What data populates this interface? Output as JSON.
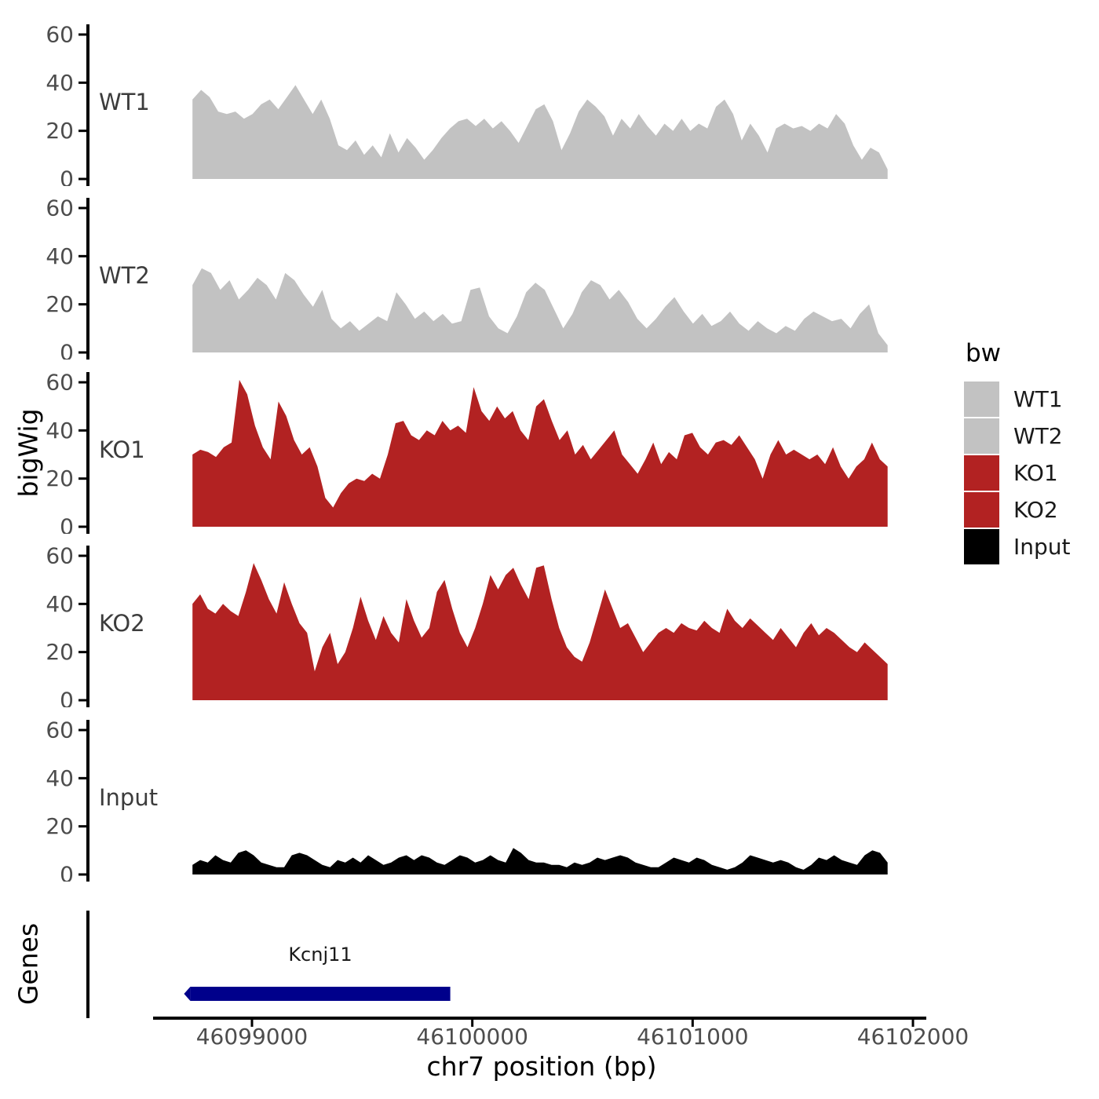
{
  "chart_data": {
    "type": "area",
    "title": "",
    "xlabel": "chr7 position (bp)",
    "ylabel": "bigWig",
    "grid": false,
    "ylim": [
      0,
      60
    ],
    "yticks": [
      0,
      20,
      40,
      60
    ],
    "xticks": [
      46099000,
      46100000,
      46101000,
      46102000
    ],
    "x_range_bp": [
      46098730,
      46101885
    ],
    "panels": [
      {
        "name": "WT1",
        "color": "#c2c2c2",
        "values": [
          33,
          37,
          34,
          28,
          27,
          28,
          25,
          27,
          31,
          33,
          29,
          34,
          39,
          33,
          27,
          33,
          25,
          14,
          12,
          16,
          10,
          14,
          9,
          19,
          11,
          17,
          13,
          8,
          12,
          17,
          21,
          24,
          25,
          22,
          25,
          21,
          24,
          20,
          15,
          22,
          29,
          31,
          24,
          12,
          19,
          28,
          33,
          30,
          26,
          18,
          25,
          21,
          27,
          22,
          18,
          23,
          20,
          25,
          20,
          23,
          21,
          30,
          33,
          27,
          16,
          23,
          18,
          11,
          21,
          23,
          21,
          22,
          20,
          23,
          21,
          27,
          23,
          14,
          8,
          13,
          11,
          4
        ]
      },
      {
        "name": "WT2",
        "color": "#c2c2c2",
        "values": [
          28,
          35,
          33,
          26,
          30,
          22,
          26,
          31,
          28,
          22,
          33,
          30,
          24,
          19,
          26,
          14,
          10,
          13,
          9,
          12,
          15,
          13,
          25,
          20,
          14,
          17,
          13,
          16,
          12,
          13,
          26,
          27,
          15,
          10,
          8,
          15,
          25,
          29,
          26,
          18,
          10,
          16,
          25,
          30,
          28,
          22,
          26,
          21,
          14,
          10,
          14,
          19,
          23,
          17,
          12,
          16,
          11,
          13,
          17,
          12,
          9,
          13,
          10,
          8,
          11,
          9,
          14,
          17,
          15,
          13,
          14,
          10,
          16,
          20,
          8,
          3
        ]
      },
      {
        "name": "KO1",
        "color": "#b22222",
        "values": [
          30,
          32,
          31,
          29,
          33,
          35,
          61,
          55,
          42,
          33,
          28,
          52,
          46,
          36,
          30,
          33,
          25,
          12,
          8,
          14,
          18,
          20,
          19,
          22,
          20,
          30,
          43,
          44,
          38,
          36,
          40,
          38,
          44,
          40,
          42,
          39,
          58,
          48,
          44,
          50,
          45,
          48,
          40,
          36,
          50,
          53,
          44,
          36,
          40,
          30,
          34,
          28,
          32,
          36,
          40,
          30,
          26,
          22,
          28,
          35,
          26,
          31,
          28,
          38,
          39,
          33,
          30,
          35,
          36,
          34,
          38,
          33,
          28,
          20,
          30,
          36,
          30,
          32,
          30,
          28,
          30,
          26,
          33,
          25,
          20,
          25,
          28,
          35,
          28,
          25
        ]
      },
      {
        "name": "KO2",
        "color": "#b22222",
        "values": [
          40,
          44,
          38,
          36,
          40,
          37,
          35,
          45,
          57,
          50,
          42,
          36,
          49,
          40,
          32,
          28,
          12,
          22,
          28,
          15,
          20,
          30,
          43,
          33,
          25,
          35,
          28,
          24,
          42,
          33,
          26,
          30,
          45,
          50,
          38,
          28,
          22,
          30,
          40,
          52,
          46,
          52,
          55,
          48,
          42,
          55,
          56,
          42,
          30,
          22,
          18,
          16,
          24,
          35,
          46,
          38,
          30,
          32,
          26,
          20,
          24,
          28,
          30,
          28,
          32,
          30,
          29,
          33,
          30,
          28,
          38,
          33,
          30,
          34,
          31,
          28,
          25,
          30,
          26,
          22,
          28,
          32,
          27,
          30,
          28,
          25,
          22,
          20,
          24,
          21,
          18,
          15
        ]
      },
      {
        "name": "Input",
        "color": "#000000",
        "values": [
          4,
          6,
          5,
          8,
          6,
          5,
          9,
          10,
          8,
          5,
          4,
          3,
          3,
          8,
          9,
          8,
          6,
          4,
          3,
          6,
          5,
          7,
          5,
          8,
          6,
          4,
          5,
          7,
          8,
          6,
          8,
          7,
          5,
          4,
          6,
          8,
          7,
          5,
          6,
          8,
          6,
          5,
          11,
          9,
          6,
          5,
          5,
          4,
          4,
          3,
          5,
          4,
          5,
          7,
          6,
          7,
          8,
          7,
          5,
          4,
          3,
          3,
          5,
          7,
          6,
          5,
          7,
          6,
          4,
          3,
          2,
          3,
          5,
          8,
          7,
          6,
          5,
          6,
          5,
          3,
          2,
          4,
          7,
          6,
          8,
          6,
          5,
          4,
          8,
          10,
          9,
          5
        ]
      }
    ],
    "genes_track": {
      "label": "Genes",
      "genes": [
        {
          "name": "Kcnj11",
          "start_bp": 46098720,
          "end_bp": 46099900,
          "strand": "-",
          "color": "#00008b"
        }
      ]
    },
    "legend": {
      "title": "bw",
      "entries": [
        {
          "label": "WT1",
          "color": "#c2c2c2"
        },
        {
          "label": "WT2",
          "color": "#c2c2c2"
        },
        {
          "label": "KO1",
          "color": "#b22222"
        },
        {
          "label": "KO2",
          "color": "#b22222"
        },
        {
          "label": "Input",
          "color": "#000000"
        }
      ]
    }
  },
  "colors": {
    "axis": "#000000",
    "tick_label": "#4d4d4d",
    "track_label": "#3c3c3c",
    "gene_label": "#1a1a1a"
  }
}
